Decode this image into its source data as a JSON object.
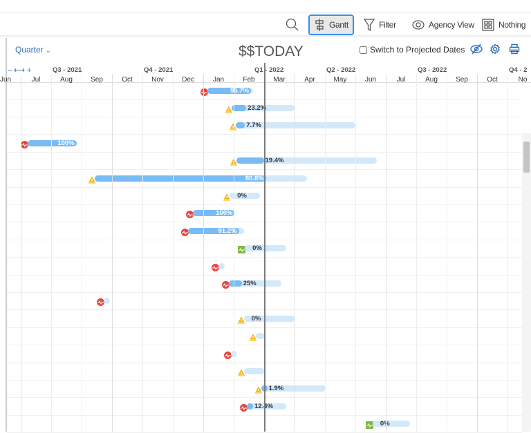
{
  "toolbar": {
    "search_icon": "search-icon",
    "gantt": "Gantt",
    "filter": "Filter",
    "agency_view": "Agency View",
    "nothing": "Nothing"
  },
  "controls": {
    "zoom_level": "Quarter",
    "today_title": "$$TODAY",
    "projected_label": "Switch to Projected Dates",
    "projected_checked": false,
    "zoom_controls": "– ⟷ +"
  },
  "timeline": {
    "quarters": [
      {
        "label": "Q3 - 2021"
      },
      {
        "label": "Q4 - 2021"
      },
      {
        "label": "Q1 - 2022"
      },
      {
        "label": "Q2 - 2022"
      },
      {
        "label": "Q3 - 2022"
      },
      {
        "label": "Q4 - 2"
      }
    ],
    "months": [
      "Jun",
      "Jul",
      "Aug",
      "Sep",
      "Oct",
      "Nov",
      "Dec",
      "Jan",
      "Feb",
      "Mar",
      "Apr",
      "May",
      "Jun",
      "Jul",
      "Aug",
      "Sep",
      "Oct",
      "No"
    ],
    "today": "2022-03-01"
  },
  "colors": {
    "progress": "#78bbf5",
    "remaining": "#d2e8fb",
    "red": "#e8453c",
    "warn": "#f5b400",
    "green": "#7cbb42",
    "accent": "#378ef0"
  },
  "tasks": [
    {
      "start": "2022-01-05",
      "end": "2022-02-20",
      "progress": 95.7,
      "label": "95.7%",
      "status": "red"
    },
    {
      "start": "2022-01-29",
      "end": "2022-04-01",
      "progress": 23.2,
      "label": "23.2%",
      "status": "warn"
    },
    {
      "start": "2022-02-03",
      "end": "2022-06-01",
      "progress": 7.7,
      "label": "7.7%",
      "status": "warn"
    },
    {
      "start": "2021-07-08",
      "end": "2021-08-26",
      "progress": 100,
      "label": "100%",
      "status": "red"
    },
    {
      "start": "2022-02-04",
      "end": "2022-06-22",
      "progress": 19.4,
      "label": "19.4%",
      "status": "warn"
    },
    {
      "start": "2021-09-14",
      "end": "2022-04-13",
      "progress": 80.8,
      "label": "80.8%",
      "status": "warn"
    },
    {
      "start": "2022-01-27",
      "end": "2022-02-27",
      "progress": 0,
      "label": "0%",
      "status": "warn"
    },
    {
      "start": "2021-12-21",
      "end": "2022-02-02",
      "progress": 100,
      "label": "100%",
      "status": "red"
    },
    {
      "start": "2021-12-16",
      "end": "2022-02-11",
      "progress": 91.2,
      "label": "91.2%",
      "status": "red"
    },
    {
      "start": "2022-02-12",
      "end": "2022-03-23",
      "progress": 0,
      "label": "0%",
      "status": "green"
    },
    {
      "start": "2022-01-16",
      "end": "2022-01-22",
      "progress": 0,
      "label": "",
      "status": "red"
    },
    {
      "start": "2022-01-26",
      "end": "2022-03-18",
      "progress": 25,
      "label": "25%",
      "status": "red"
    },
    {
      "start": "2021-09-23",
      "end": "2021-09-29",
      "progress": 0,
      "label": "",
      "status": "red"
    },
    {
      "start": "2022-02-11",
      "end": "2022-04-01",
      "progress": 0,
      "label": "0%",
      "status": "warn"
    },
    {
      "start": "2022-02-23",
      "end": "2022-03-02",
      "progress": 0,
      "label": "",
      "status": "warn"
    },
    {
      "start": "2022-01-28",
      "end": "2022-02-02",
      "progress": 0,
      "label": "",
      "status": "red"
    },
    {
      "start": "2022-02-11",
      "end": "2022-03-02",
      "progress": 0,
      "label": "",
      "status": "warn"
    },
    {
      "start": "2022-02-28",
      "end": "2022-05-02",
      "progress": 1.9,
      "label": "1.9%",
      "status": "warn"
    },
    {
      "start": "2022-02-14",
      "end": "2022-03-23",
      "progress": 12.4,
      "label": "12.4%",
      "status": "red"
    },
    {
      "start": "2022-06-18",
      "end": "2022-07-25",
      "progress": 0,
      "label": "0%",
      "status": "green"
    }
  ]
}
